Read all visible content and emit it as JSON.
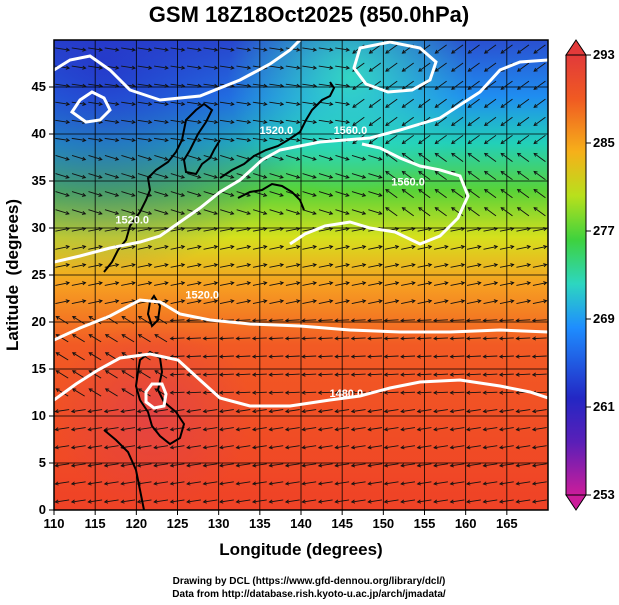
{
  "chart_data": {
    "type": "heatmap",
    "title": "GSM 18Z18Oct2025 (850.0hPa)",
    "xlabel": "Longitude (degrees)",
    "ylabel": "Latitude  (degrees)",
    "xlim": [
      110,
      170
    ],
    "ylim": [
      0,
      50
    ],
    "x_ticks": [
      110,
      115,
      120,
      125,
      130,
      135,
      140,
      145,
      150,
      155,
      160,
      165
    ],
    "y_ticks": [
      0,
      5,
      10,
      15,
      20,
      25,
      30,
      35,
      40,
      45
    ],
    "grid": true,
    "colorbar": {
      "range": [
        253,
        293
      ],
      "ticks": [
        253,
        261,
        269,
        277,
        285,
        293
      ],
      "colors": [
        "#cc1d9a",
        "#3324c0",
        "#1e7fff",
        "#2dd6c0",
        "#4ad24a",
        "#c8e21c",
        "#f6a21a",
        "#ef4a24",
        "#e23a3a"
      ]
    },
    "contour_labels": [
      {
        "text": "1520.0",
        "lon": 137,
        "lat": 40
      },
      {
        "text": "1560.0",
        "lon": 146,
        "lat": 40
      },
      {
        "text": "1560.0",
        "lon": 153,
        "lat": 34.5
      },
      {
        "text": "1520.0",
        "lon": 119.5,
        "lat": 30.5
      },
      {
        "text": "1520.0",
        "lon": 128,
        "lat": 22.5
      },
      {
        "text": "1480.0",
        "lon": 145.5,
        "lat": 12
      }
    ]
  },
  "credits": {
    "line1": "Drawing by DCL (https://www.gfd-dennou.org/library/dcl/)",
    "line2": "Data from http://database.rish.kyoto-u.ac.jp/arch/jmadata/"
  }
}
